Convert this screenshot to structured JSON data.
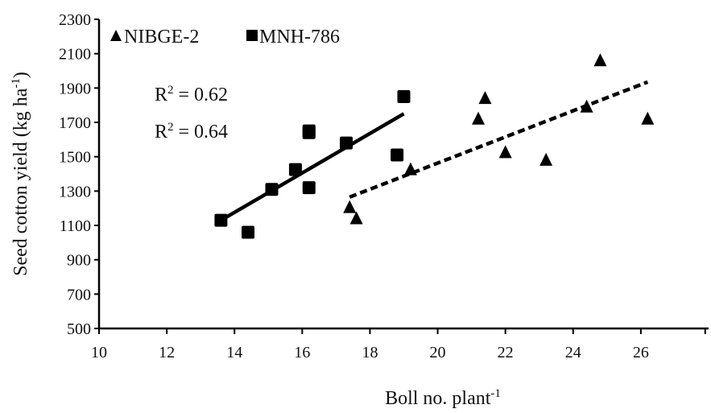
{
  "chart_data": {
    "type": "scatter",
    "xlabel": "Boll no. plant",
    "xlabel_sup": "-1",
    "ylabel": "Seed cotton yield (kg ha",
    "ylabel_sup": "-1",
    "ylabel_close": ")",
    "xlim": [
      10,
      28
    ],
    "ylim": [
      500,
      2300
    ],
    "x_ticks": [
      10,
      12,
      14,
      16,
      18,
      20,
      22,
      24,
      26
    ],
    "y_ticks": [
      500,
      700,
      900,
      1100,
      1300,
      1500,
      1700,
      1900,
      2100,
      2300
    ],
    "grid": false,
    "legend_position": "top-left",
    "series": [
      {
        "name": "NIBGE-2",
        "marker": "triangle",
        "color": "#000000",
        "points": [
          {
            "x": 17.4,
            "y": 1205
          },
          {
            "x": 17.6,
            "y": 1140
          },
          {
            "x": 19.2,
            "y": 1425
          },
          {
            "x": 21.2,
            "y": 1720
          },
          {
            "x": 21.4,
            "y": 1840
          },
          {
            "x": 22.0,
            "y": 1525
          },
          {
            "x": 23.2,
            "y": 1480
          },
          {
            "x": 24.4,
            "y": 1790
          },
          {
            "x": 24.8,
            "y": 2060
          },
          {
            "x": 26.2,
            "y": 1720
          }
        ],
        "trendline": {
          "style": "dashed",
          "x": [
            17.4,
            26.2
          ],
          "y": [
            1265,
            1935
          ]
        }
      },
      {
        "name": "MNH-786",
        "marker": "square",
        "color": "#000000",
        "points": [
          {
            "x": 13.6,
            "y": 1130
          },
          {
            "x": 14.4,
            "y": 1060
          },
          {
            "x": 15.1,
            "y": 1310
          },
          {
            "x": 15.8,
            "y": 1425
          },
          {
            "x": 16.2,
            "y": 1320
          },
          {
            "x": 16.2,
            "y": 1640
          },
          {
            "x": 16.2,
            "y": 1650
          },
          {
            "x": 17.3,
            "y": 1580
          },
          {
            "x": 18.8,
            "y": 1510
          },
          {
            "x": 19.0,
            "y": 1850
          }
        ],
        "trendline": {
          "style": "solid",
          "x": [
            13.6,
            19.0
          ],
          "y": [
            1130,
            1750
          ]
        }
      }
    ],
    "annotations": [
      {
        "r2_base": "R",
        "r2_sup": "2",
        "r2_value": " = 0.62"
      },
      {
        "r2_base": "R",
        "r2_sup": "2",
        "r2_value": " = 0.64"
      }
    ]
  }
}
